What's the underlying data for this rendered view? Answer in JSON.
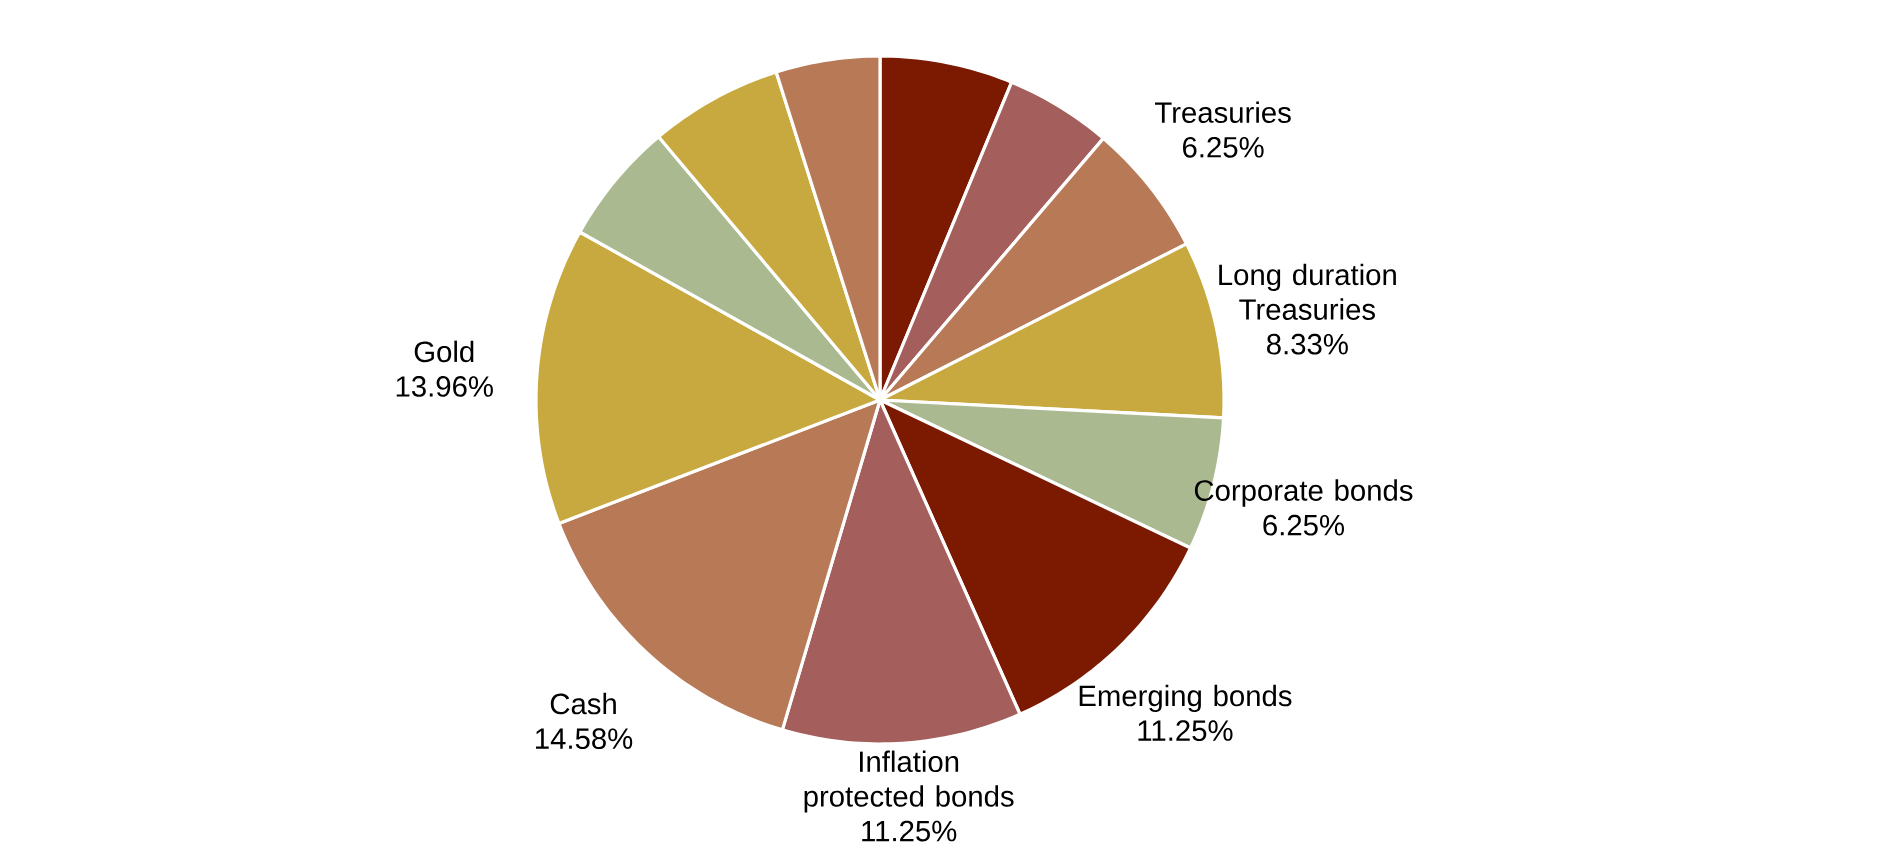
{
  "chart_data": {
    "type": "pie",
    "categories": [
      null,
      null,
      "Treasuries",
      "Long duration Treasuries",
      "Corporate bonds",
      "Emerging bonds",
      "Inflation protected bonds",
      "Cash",
      "Gold",
      null,
      null,
      null
    ],
    "values": [
      6.25,
      5.0,
      6.25,
      8.33,
      6.25,
      11.25,
      11.25,
      14.58,
      13.96,
      5.75,
      6.25,
      4.88
    ],
    "value_labels": [
      null,
      null,
      "6.25%",
      "8.33%",
      "6.25%",
      "11.25%",
      "11.25%",
      "14.58%",
      "13.96%",
      null,
      null,
      null
    ],
    "colors": [
      "#7b1a00",
      "#a45e5c",
      "#b87957",
      "#c8a93f",
      "#abb991",
      "#7b1a00",
      "#a45e5c",
      "#b87957",
      "#c8a93f",
      "#abb991",
      "#c8a93f",
      "#b87957"
    ]
  }
}
